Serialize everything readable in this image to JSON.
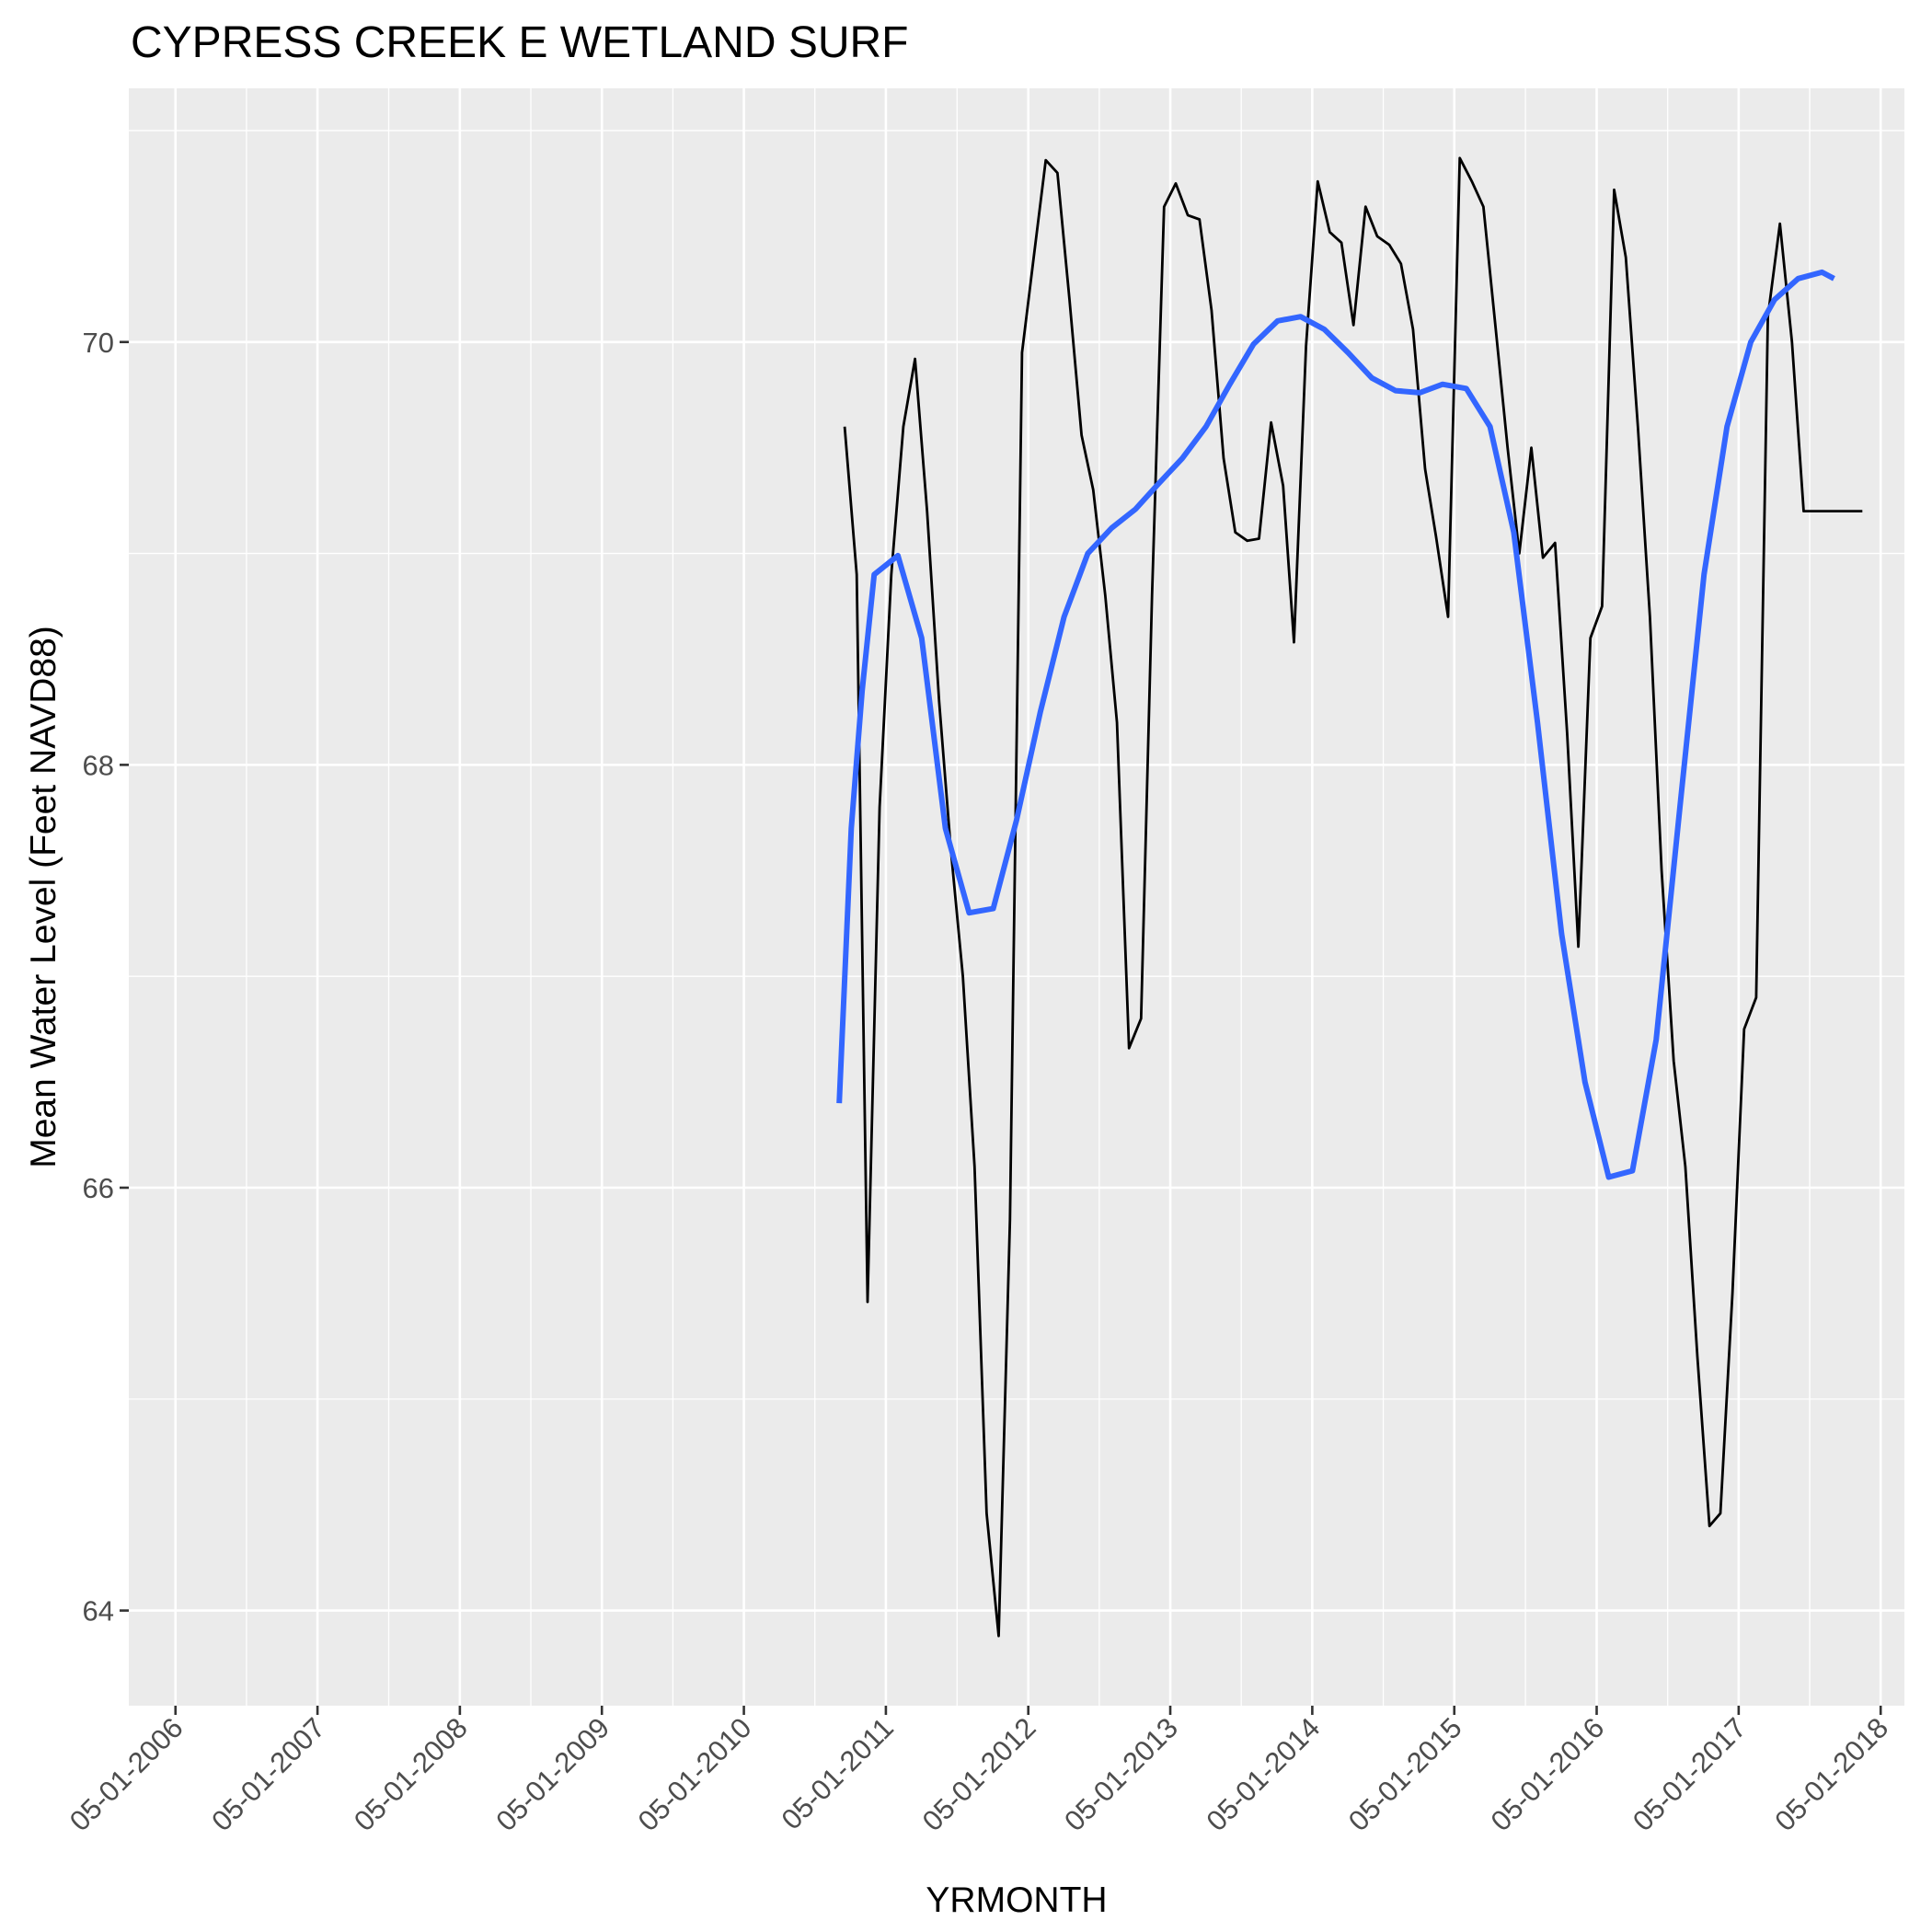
{
  "chart_data": {
    "type": "line",
    "title": "CYPRESS CREEK E WETLAND SURF",
    "xlabel": "YRMONTH",
    "ylabel": "Mean Water Level (Feet NAVD88)",
    "x_ticks": [
      "05-01-2006",
      "05-01-2007",
      "05-01-2008",
      "05-01-2009",
      "05-01-2010",
      "05-01-2011",
      "05-01-2012",
      "05-01-2013",
      "05-01-2014",
      "05-01-2015",
      "05-01-2016",
      "05-01-2017",
      "05-01-2018"
    ],
    "y_ticks": [
      "64",
      "66",
      "68",
      "70"
    ],
    "xlim": [
      "01-01-2006",
      "07-01-2018"
    ],
    "ylim": [
      63.55,
      71.2
    ],
    "grid": true,
    "series": [
      {
        "kind": "observed",
        "color": "#000000",
        "x": [
          "01-15-2011",
          "02-15-2011",
          "03-15-2011",
          "04-15-2011",
          "05-15-2011",
          "06-15-2011",
          "07-15-2011",
          "08-15-2011",
          "09-15-2011",
          "10-15-2011",
          "11-15-2011",
          "12-15-2011",
          "01-15-2012",
          "02-15-2012",
          "03-15-2012",
          "04-15-2012",
          "05-15-2012",
          "06-15-2012",
          "07-15-2012",
          "08-15-2012",
          "09-15-2012",
          "10-15-2012",
          "11-15-2012",
          "12-15-2012",
          "01-15-2013",
          "02-15-2013",
          "03-15-2013",
          "04-15-2013",
          "05-15-2013",
          "06-15-2013",
          "07-15-2013",
          "08-15-2013",
          "09-15-2013",
          "10-15-2013",
          "11-15-2013",
          "12-15-2013",
          "01-15-2014",
          "02-15-2014",
          "03-15-2014",
          "04-15-2014",
          "05-15-2014",
          "06-15-2014",
          "07-15-2014",
          "08-15-2014",
          "09-15-2014",
          "10-15-2014",
          "11-15-2014",
          "12-15-2014",
          "01-15-2015",
          "02-15-2015",
          "03-15-2015",
          "04-15-2015",
          "05-15-2015",
          "06-15-2015",
          "07-15-2015",
          "08-15-2015",
          "09-15-2015",
          "10-15-2015",
          "11-15-2015",
          "12-15-2015",
          "01-15-2016",
          "02-15-2016",
          "03-15-2016",
          "04-15-2016",
          "05-15-2016",
          "06-15-2016",
          "07-15-2016",
          "08-15-2016",
          "09-15-2016",
          "10-15-2016",
          "11-15-2016",
          "12-15-2016",
          "01-15-2017",
          "02-15-2017",
          "03-15-2017",
          "04-15-2017",
          "05-15-2017",
          "06-15-2017",
          "07-15-2017",
          "08-15-2017",
          "09-15-2017",
          "10-15-2017",
          "11-15-2017",
          "12-15-2017",
          "01-15-2018",
          "02-15-2018",
          "03-15-2018"
        ],
        "y": [
          69.6,
          68.9,
          65.46,
          67.8,
          68.9,
          69.6,
          69.92,
          69.2,
          68.3,
          67.6,
          67.0,
          66.1,
          64.46,
          63.88,
          65.85,
          69.95,
          70.4,
          70.86,
          70.8,
          70.2,
          69.56,
          69.3,
          68.8,
          68.2,
          66.66,
          66.8,
          68.8,
          70.64,
          70.75,
          70.6,
          70.58,
          70.15,
          69.45,
          69.1,
          69.06,
          69.07,
          69.62,
          69.32,
          68.58,
          69.98,
          70.76,
          70.52,
          70.47,
          70.08,
          70.64,
          70.5,
          70.46,
          70.37,
          70.06,
          69.4,
          69.08,
          68.7,
          70.87,
          70.76,
          70.64,
          70.07,
          69.5,
          69.0,
          69.5,
          68.98,
          69.05,
          68.15,
          67.14,
          68.6,
          68.75,
          70.72,
          70.4,
          69.6,
          68.7,
          67.5,
          66.6,
          66.1,
          65.2,
          64.4,
          64.46,
          65.5,
          66.75,
          66.9,
          70.12,
          70.56,
          70.0,
          69.2,
          69.2,
          69.2,
          69.2,
          69.2,
          69.2
        ]
      },
      {
        "kind": "smooth",
        "color": "#3366ff",
        "x": [
          "01-01-2011",
          "02-01-2011",
          "03-01-2011",
          "04-01-2011",
          "06-01-2011",
          "08-01-2011",
          "10-01-2011",
          "12-01-2011",
          "02-01-2012",
          "04-01-2012",
          "06-01-2012",
          "08-01-2012",
          "10-01-2012",
          "12-01-2012",
          "02-01-2013",
          "04-01-2013",
          "06-01-2013",
          "08-01-2013",
          "10-01-2013",
          "12-01-2013",
          "02-01-2014",
          "04-01-2014",
          "06-01-2014",
          "08-01-2014",
          "10-01-2014",
          "12-01-2014",
          "02-01-2015",
          "04-01-2015",
          "06-01-2015",
          "08-01-2015",
          "10-01-2015",
          "12-01-2015",
          "02-01-2016",
          "04-01-2016",
          "06-01-2016",
          "08-01-2016",
          "10-01-2016",
          "12-01-2016",
          "02-01-2017",
          "04-01-2017",
          "06-01-2017",
          "08-01-2017",
          "10-01-2017",
          "12-01-2017",
          "01-01-2018"
        ],
        "y": [
          66.4,
          67.7,
          68.35,
          68.9,
          68.99,
          68.6,
          67.7,
          67.3,
          67.32,
          67.74,
          68.25,
          68.7,
          69.0,
          69.12,
          69.21,
          69.33,
          69.45,
          69.6,
          69.8,
          69.99,
          70.1,
          70.12,
          70.06,
          69.95,
          69.83,
          69.77,
          69.76,
          69.8,
          69.78,
          69.6,
          69.1,
          68.2,
          67.2,
          66.5,
          66.05,
          66.08,
          66.7,
          67.8,
          68.9,
          69.6,
          70.0,
          70.2,
          70.3,
          70.33,
          70.3
        ]
      }
    ]
  }
}
